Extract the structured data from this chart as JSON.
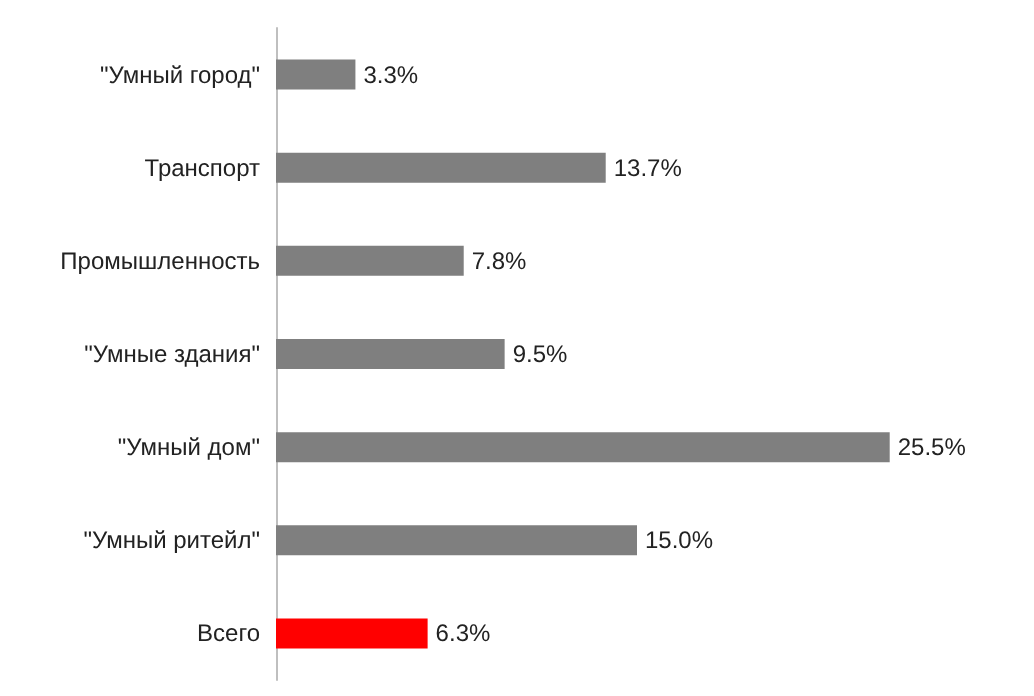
{
  "chart_data": {
    "type": "bar",
    "orientation": "horizontal",
    "categories": [
      "\"Умный город\"",
      "Транспорт",
      "Промышленность",
      "\"Умные здания\"",
      "\"Умный дом\"",
      "\"Умный ритейл\"",
      "Всего"
    ],
    "values": [
      3.3,
      13.7,
      7.8,
      9.5,
      25.5,
      15.0,
      6.3
    ],
    "colors": [
      "#7f7f7f",
      "#7f7f7f",
      "#7f7f7f",
      "#7f7f7f",
      "#7f7f7f",
      "#7f7f7f",
      "#ff0000"
    ],
    "value_labels": [
      "3.3%",
      "13.7%",
      "7.8%",
      "9.5%",
      "25.5%",
      "15.0%",
      "6.3%"
    ]
  }
}
